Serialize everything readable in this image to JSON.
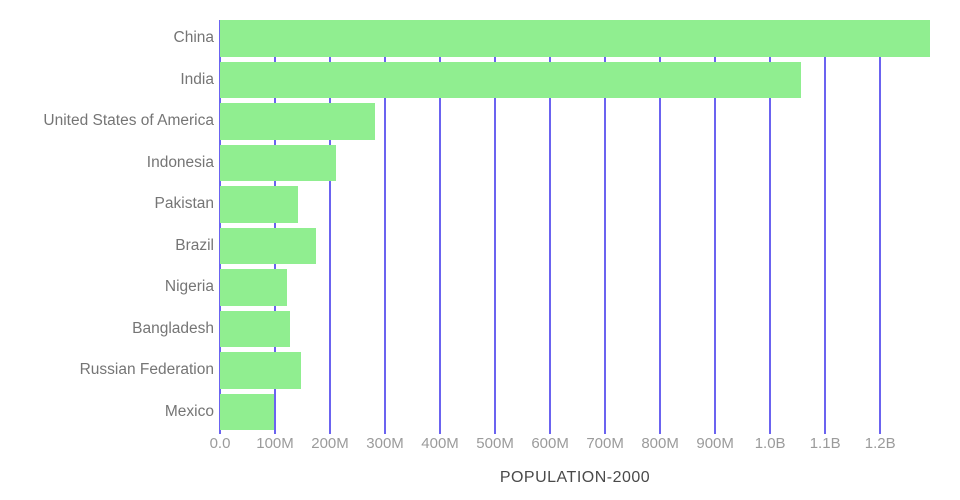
{
  "chart_data": {
    "type": "bar",
    "orientation": "horizontal",
    "title": "",
    "xlabel": "POPULATION-2000",
    "ylabel": "",
    "categories": [
      "China",
      "India",
      "United States of America",
      "Indonesia",
      "Pakistan",
      "Brazil",
      "Nigeria",
      "Bangladesh",
      "Russian Federation",
      "Mexico"
    ],
    "values": [
      1290550765,
      1056575549,
      281710909,
      211513823,
      142343578,
      174790340,
      122283850,
      127657854,
      146596557,
      98899845
    ],
    "values_unit": "people",
    "xlim": [
      0,
      1290550765
    ],
    "x_ticks": [
      {
        "value": 0,
        "label": "0.0"
      },
      {
        "value": 100000000,
        "label": "100M"
      },
      {
        "value": 200000000,
        "label": "200M"
      },
      {
        "value": 300000000,
        "label": "300M"
      },
      {
        "value": 400000000,
        "label": "400M"
      },
      {
        "value": 500000000,
        "label": "500M"
      },
      {
        "value": 600000000,
        "label": "600M"
      },
      {
        "value": 700000000,
        "label": "700M"
      },
      {
        "value": 800000000,
        "label": "800M"
      },
      {
        "value": 900000000,
        "label": "900M"
      },
      {
        "value": 1000000000,
        "label": "1.0B"
      },
      {
        "value": 1100000000,
        "label": "1.1B"
      },
      {
        "value": 1200000000,
        "label": "1.2B"
      }
    ],
    "grid": true,
    "legend": false,
    "colors": {
      "bar": "#90EE90",
      "grid": "#6B63F0",
      "category_label": "#757575",
      "tick_label": "#9B9B9B",
      "axis_title": "#4A4A4A",
      "background": "#FFFFFF"
    }
  }
}
